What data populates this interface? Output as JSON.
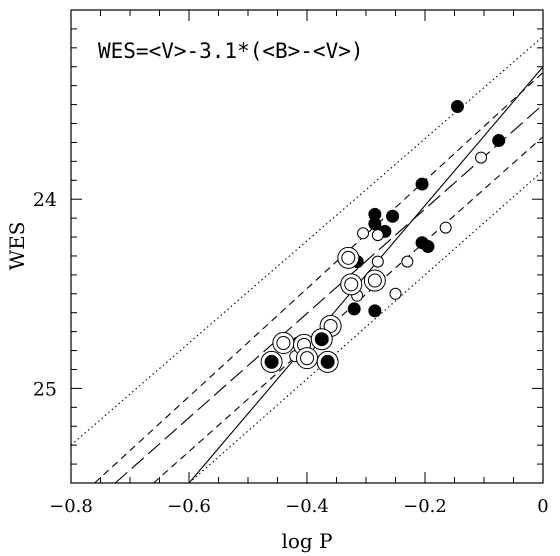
{
  "chart_data": {
    "type": "scatter",
    "annotation": "WES=<V>-3.1*(<B>-<V>)",
    "xlabel": "log P",
    "ylabel": "WES",
    "xlim": [
      -0.8,
      0.0
    ],
    "ylim": [
      25.5,
      23.0
    ],
    "y_inverted": true,
    "grid": false,
    "x_ticks": [
      -0.8,
      -0.6,
      -0.4,
      -0.2,
      0
    ],
    "x_tick_labels": [
      "−0.8",
      "−0.6",
      "−0.4",
      "−0.2",
      "0"
    ],
    "y_ticks": [
      24,
      25
    ],
    "y_tick_labels": [
      "24",
      "25"
    ],
    "series": [
      {
        "marker": "filled-circle",
        "points": [
          [
            -0.145,
            23.51
          ],
          [
            -0.075,
            23.69
          ],
          [
            -0.205,
            23.92
          ],
          [
            -0.285,
            24.08
          ],
          [
            -0.285,
            24.13
          ],
          [
            -0.255,
            24.09
          ],
          [
            -0.268,
            24.17
          ],
          [
            -0.315,
            24.33
          ],
          [
            -0.205,
            24.23
          ],
          [
            -0.195,
            24.25
          ],
          [
            -0.32,
            24.58
          ],
          [
            -0.285,
            24.59
          ],
          [
            -0.375,
            24.73
          ],
          [
            -0.415,
            24.76
          ],
          [
            -0.46,
            24.86
          ],
          [
            -0.365,
            24.86
          ]
        ]
      },
      {
        "marker": "open-circle",
        "points": [
          [
            -0.105,
            23.78
          ],
          [
            -0.165,
            24.15
          ],
          [
            -0.28,
            24.19
          ],
          [
            -0.305,
            24.18
          ],
          [
            -0.28,
            24.33
          ],
          [
            -0.23,
            24.33
          ],
          [
            -0.25,
            24.5
          ],
          [
            -0.325,
            24.43
          ],
          [
            -0.315,
            24.51
          ],
          [
            -0.285,
            24.42
          ],
          [
            -0.36,
            24.66
          ],
          [
            -0.42,
            24.83
          ]
        ]
      },
      {
        "marker": "double-ring-open",
        "points": [
          [
            -0.33,
            24.31
          ],
          [
            -0.325,
            24.45
          ],
          [
            -0.285,
            24.43
          ],
          [
            -0.36,
            24.67
          ],
          [
            -0.44,
            24.76
          ],
          [
            -0.405,
            24.77
          ],
          [
            -0.4,
            24.84
          ]
        ]
      },
      {
        "marker": "double-ring-filled",
        "points": [
          [
            -0.46,
            24.86
          ],
          [
            -0.375,
            24.74
          ],
          [
            -0.365,
            24.86
          ]
        ]
      }
    ],
    "lines": [
      {
        "style": "solid",
        "points": [
          [
            -0.6,
            25.5
          ],
          [
            0.0,
            23.3
          ]
        ]
      },
      {
        "style": "long-dash",
        "points": [
          [
            -0.725,
            25.5
          ],
          [
            0.0,
            23.5
          ]
        ]
      },
      {
        "style": "short-dash",
        "points": [
          [
            -0.76,
            25.5
          ],
          [
            0.0,
            23.33
          ]
        ]
      },
      {
        "style": "short-dash",
        "points": [
          [
            -0.66,
            25.5
          ],
          [
            0.0,
            23.67
          ]
        ]
      },
      {
        "style": "dotted",
        "points": [
          [
            -0.8,
            25.3
          ],
          [
            0.0,
            23.14
          ]
        ]
      },
      {
        "style": "dotted",
        "points": [
          [
            -0.6,
            25.5
          ],
          [
            0.0,
            23.85
          ]
        ]
      }
    ]
  }
}
